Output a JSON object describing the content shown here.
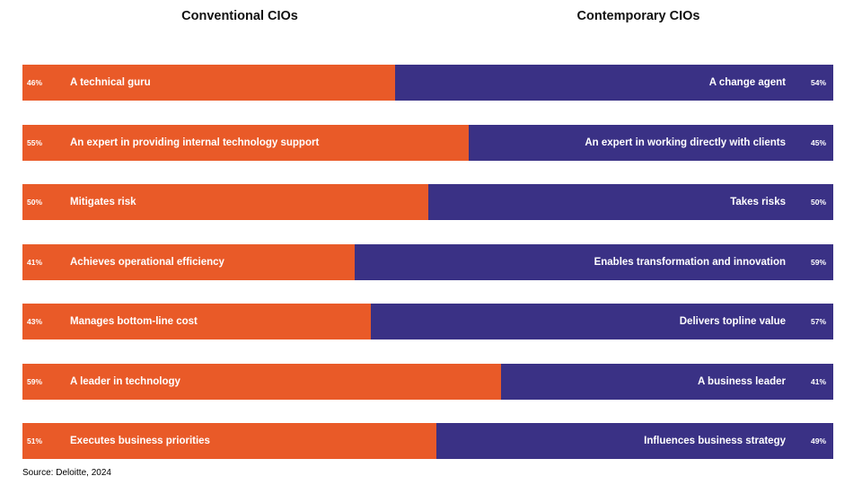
{
  "chart_data": {
    "type": "bar",
    "variant": "paired-diverging-horizontal",
    "column_headers": [
      {
        "label": "Conventional CIOs"
      },
      {
        "label": "Contemporary CIOs"
      }
    ],
    "rows": [
      {
        "conventional_pct": 46,
        "conventional_label": "A technical guru",
        "contemporary_label": "A change agent",
        "contemporary_pct": 54
      },
      {
        "conventional_pct": 55,
        "conventional_label": "An expert in providing internal technology support",
        "contemporary_label": "An expert in working directly with clients",
        "contemporary_pct": 45
      },
      {
        "conventional_pct": 50,
        "conventional_label": "Mitigates risk",
        "contemporary_label": "Takes risks",
        "contemporary_pct": 50
      },
      {
        "conventional_pct": 41,
        "conventional_label": "Achieves operational efficiency",
        "contemporary_label": "Enables transformation and innovation",
        "contemporary_pct": 59
      },
      {
        "conventional_pct": 43,
        "conventional_label": "Manages bottom-line cost",
        "contemporary_label": "Delivers topline value",
        "contemporary_pct": 57
      },
      {
        "conventional_pct": 59,
        "conventional_label": "A leader in technology",
        "contemporary_label": "A business leader",
        "contemporary_pct": 41
      },
      {
        "conventional_pct": 51,
        "conventional_label": "Executes business priorities",
        "contemporary_label": "Influences business strategy",
        "contemporary_pct": 49
      }
    ],
    "xlim": [
      0,
      100
    ],
    "grid": false,
    "legend": "none",
    "colors": {
      "conventional": "#E95A28",
      "contemporary": "#3A3185"
    },
    "source": "Source: Deloitte, 2024"
  }
}
